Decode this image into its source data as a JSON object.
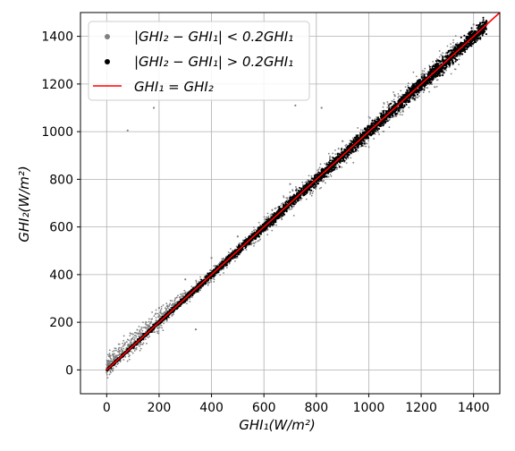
{
  "chart_data": {
    "type": "scatter",
    "title": "",
    "xlabel": "GHI₁(W/m²)",
    "ylabel": "GHI₂(W/m²)",
    "xlim": [
      -100,
      1500
    ],
    "ylim": [
      -100,
      1500
    ],
    "xticks": [
      0,
      200,
      400,
      600,
      800,
      1000,
      1200,
      1400
    ],
    "yticks": [
      0,
      200,
      400,
      600,
      800,
      1000,
      1200,
      1400
    ],
    "grid": true,
    "legend_position": "top-left",
    "series": [
      {
        "name": "|GHI₂ − GHI₁| <  0.2GHI₁",
        "kind": "points",
        "color": "#808080",
        "description_points": [
          [
            0,
            0
          ],
          [
            50,
            80
          ],
          [
            100,
            150
          ],
          [
            150,
            200
          ],
          [
            200,
            260
          ],
          [
            300,
            380
          ],
          [
            400,
            470
          ],
          [
            500,
            560
          ],
          [
            700,
            780
          ],
          [
            900,
            960
          ],
          [
            1100,
            1150
          ],
          [
            1300,
            1330
          ],
          [
            1400,
            1450
          ],
          [
            80,
            1005
          ],
          [
            180,
            1100
          ],
          [
            720,
            1110
          ],
          [
            820,
            1100
          ],
          [
            250,
            230
          ],
          [
            350,
            330
          ],
          [
            340,
            170
          ]
        ]
      },
      {
        "name": "|GHI₂ − GHI₁| >  0.2GHI₁",
        "kind": "points",
        "color": "#000000",
        "band": [
          [
            0,
            0
          ],
          [
            1450,
            1450
          ]
        ]
      },
      {
        "name": "GHI₁ = GHI₂",
        "kind": "line",
        "color": "#ff0000",
        "x": [
          0,
          1500
        ],
        "y": [
          0,
          1500
        ]
      }
    ]
  }
}
